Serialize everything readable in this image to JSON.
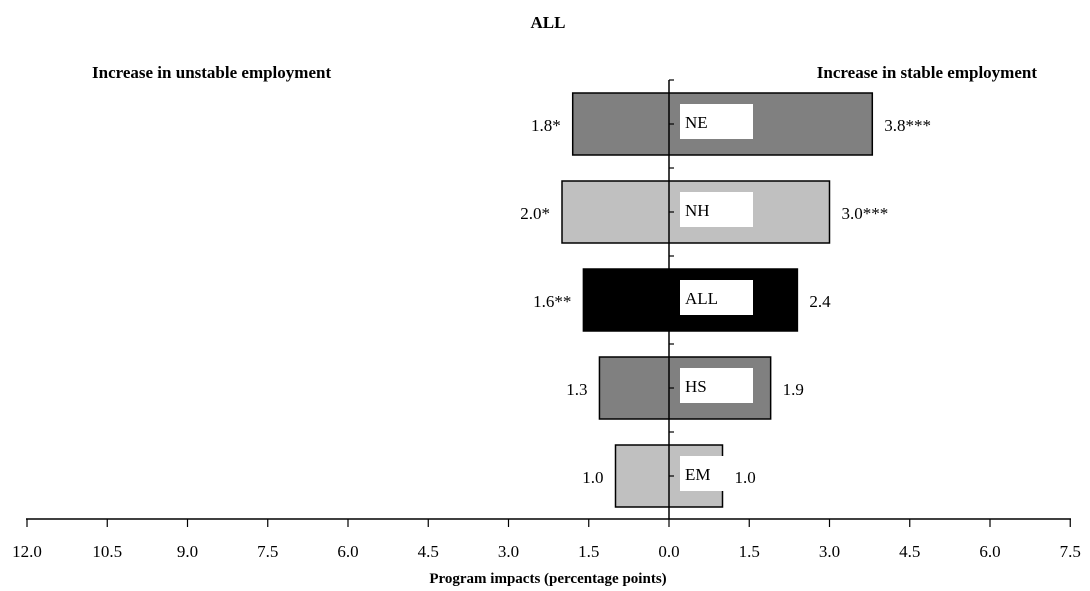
{
  "chart_data": {
    "type": "bar",
    "orientation": "horizontal-diverging",
    "title": "ALL",
    "left_heading": "Increase in unstable employment",
    "right_heading": "Increase in stable employment",
    "xlabel": "Program impacts (percentage points)",
    "x_ticks_left": [
      "12.0",
      "10.5",
      "9.0",
      "7.5",
      "6.0",
      "4.5",
      "3.0",
      "1.5"
    ],
    "x_tick_zero": "0.0",
    "x_ticks_right": [
      "1.5",
      "3.0",
      "4.5",
      "6.0",
      "7.5"
    ],
    "xlim_left": 12.0,
    "xlim_right": 7.5,
    "categories": [
      {
        "name": "NE",
        "unstable": 1.8,
        "unstable_label": "1.8*",
        "stable": 3.8,
        "stable_label": "3.8***",
        "color": "#808080"
      },
      {
        "name": "NH",
        "unstable": 2.0,
        "unstable_label": "2.0*",
        "stable": 3.0,
        "stable_label": "3.0***",
        "color": "#c0c0c0"
      },
      {
        "name": "ALL",
        "unstable": 1.6,
        "unstable_label": "1.6**",
        "stable": 2.4,
        "stable_label": "2.4",
        "color": "#000000"
      },
      {
        "name": "HS",
        "unstable": 1.3,
        "unstable_label": "1.3",
        "stable": 1.9,
        "stable_label": "1.9",
        "color": "#808080"
      },
      {
        "name": "EM",
        "unstable": 1.0,
        "unstable_label": "1.0",
        "stable": 1.0,
        "stable_label": "1.0",
        "color": "#c0c0c0"
      }
    ]
  }
}
